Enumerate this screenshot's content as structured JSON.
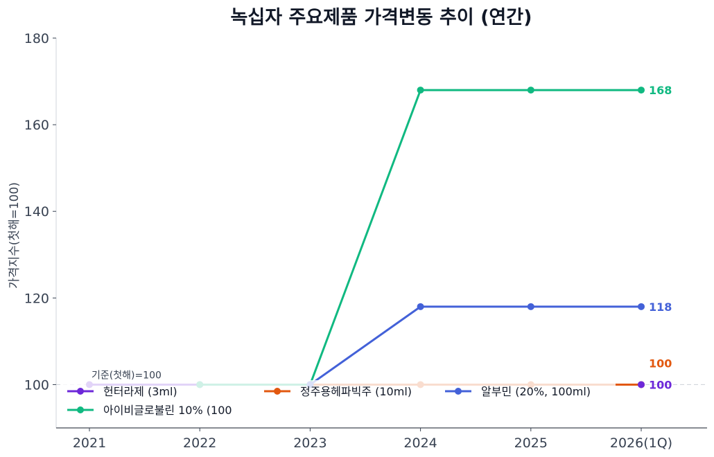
{
  "chart_data": {
    "type": "line",
    "title": "녹십자 주요제품 가격변동 추이 (연간)",
    "xlabel": "",
    "ylabel": "가격지수(첫해=100)",
    "categories": [
      "2021",
      "2022",
      "2023",
      "2024",
      "2025",
      "2026(1Q)"
    ],
    "ylim": [
      90,
      180
    ],
    "yticks": [
      100,
      120,
      140,
      160,
      180
    ],
    "grid": false,
    "legend_position": "lower-left",
    "reference_line": {
      "value": 100
    },
    "annotation": "기준(첫해)=100",
    "series": [
      {
        "name": "헌터라제 (3ml)",
        "color": "#6d28d9",
        "values": [
          100,
          100,
          100,
          null,
          null,
          100
        ],
        "end_label": "100"
      },
      {
        "name": "아이비글로불린 10% (100",
        "color": "#10b981",
        "values": [
          null,
          100,
          100,
          168,
          168,
          168
        ],
        "end_label": "168"
      },
      {
        "name": "정주용헤파빅주 (10ml)",
        "color": "#e2580f",
        "values": [
          null,
          null,
          100,
          100,
          100,
          100
        ],
        "end_label": "100"
      },
      {
        "name": "알부민 (20%, 100ml)",
        "color": "#4361d8",
        "values": [
          null,
          null,
          100,
          118,
          118,
          118
        ],
        "end_label": "118"
      }
    ]
  }
}
